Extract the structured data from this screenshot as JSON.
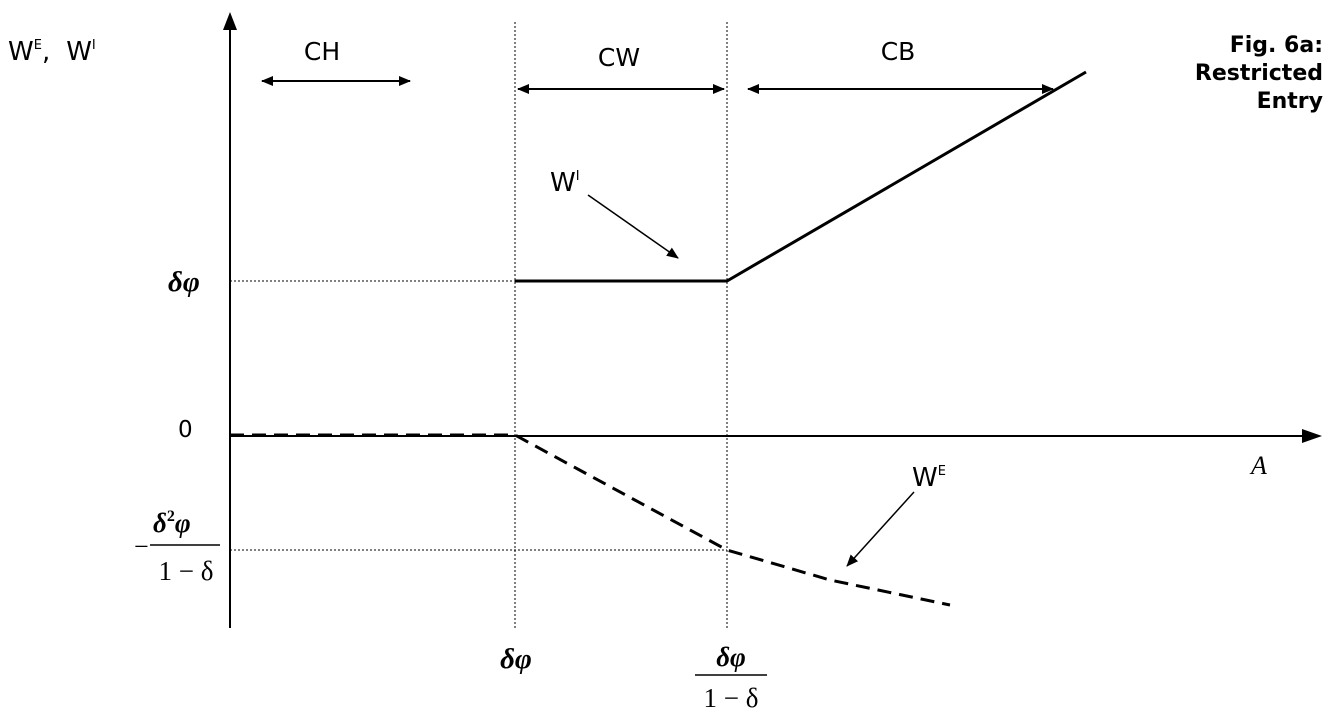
{
  "caption": {
    "line1": "Fig. 6a:",
    "line2": "Restricted",
    "line3": "Entry"
  },
  "y_axis": {
    "label_we": "W",
    "label_we_sup": "E",
    "label_sep": ",",
    "label_wi": "W",
    "label_wi_sup": "I"
  },
  "x_axis": {
    "label": "A"
  },
  "regions": [
    {
      "label": "CH"
    },
    {
      "label": "CW"
    },
    {
      "label": "CB"
    }
  ],
  "curves": {
    "wi_label": "W",
    "wi_sup": "I",
    "we_label": "W",
    "we_sup": "E"
  },
  "y_ticks": {
    "delta_phi": "δφ",
    "zero": "0",
    "neg_sign": "−",
    "neg_num_delta": "δ",
    "neg_num_exp": "2",
    "neg_num_phi": "φ",
    "neg_den": "1 − δ"
  },
  "x_ticks": {
    "delta_phi": "δφ",
    "frac_num": "δφ",
    "frac_den": "1 − δ"
  },
  "colors": {
    "ink": "#000000",
    "background": "#ffffff"
  }
}
